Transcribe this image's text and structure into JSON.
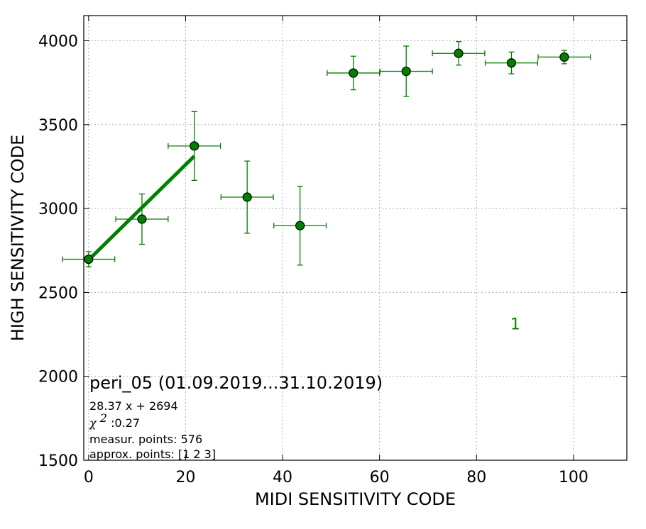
{
  "chart_data": {
    "type": "scatter",
    "title": "",
    "xlabel": "MIDI SENSITIVITY CODE",
    "ylabel": "HIGH SENSITIVITY CODE",
    "xlim": [
      -1,
      111
    ],
    "ylim": [
      1500,
      4150
    ],
    "xticks": [
      0,
      20,
      40,
      60,
      80,
      100
    ],
    "yticks": [
      1500,
      2000,
      2500,
      3000,
      3500,
      4000
    ],
    "grid": true,
    "colors": {
      "series": "#008000",
      "marker_edge": "#000000",
      "grid": "#b0b0b0"
    },
    "series": [
      {
        "points": [
          {
            "x": 0.0,
            "y": 2698,
            "xerr": 5.4,
            "yerr": 45
          },
          {
            "x": 11.0,
            "y": 2937,
            "xerr": 5.4,
            "yerr": 150
          },
          {
            "x": 21.8,
            "y": 3373,
            "xerr": 5.4,
            "yerr": 205
          },
          {
            "x": 32.7,
            "y": 3068,
            "xerr": 5.4,
            "yerr": 215
          },
          {
            "x": 43.6,
            "y": 2898,
            "xerr": 5.4,
            "yerr": 235
          },
          {
            "x": 54.6,
            "y": 3808,
            "xerr": 5.4,
            "yerr": 100
          },
          {
            "x": 65.5,
            "y": 3818,
            "xerr": 5.4,
            "yerr": 150
          },
          {
            "x": 76.3,
            "y": 3925,
            "xerr": 5.4,
            "yerr": 70
          },
          {
            "x": 87.2,
            "y": 3868,
            "xerr": 5.4,
            "yerr": 65
          },
          {
            "x": 98.1,
            "y": 3903,
            "xerr": 5.4,
            "yerr": 40
          }
        ]
      }
    ],
    "fit_line": {
      "slope": 28.37,
      "intercept": 2694,
      "x_range": [
        0,
        21.8
      ]
    },
    "annotations": {
      "title": "peri_05 (01.09.2019...31.10.2019)",
      "equation": "28.37 x + 2694",
      "chi_symbol": "χ",
      "chi_sup": "2",
      "chi_value": " :0.27",
      "measur_points": "measur. points: 576",
      "approx_points": "approx. points: [1 2 3]",
      "marker_number": "1",
      "marker_number_x": 88,
      "marker_number_y": 2280
    }
  }
}
